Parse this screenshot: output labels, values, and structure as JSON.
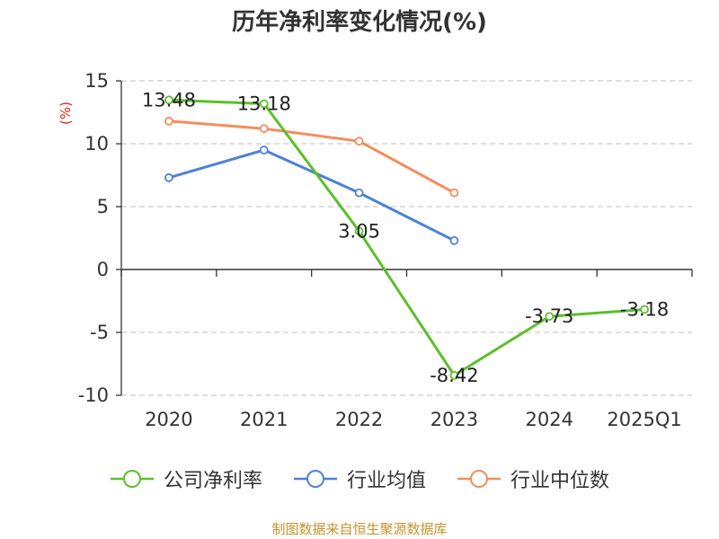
{
  "chart_data": {
    "type": "line",
    "title": "历年净利率变化情况(%)",
    "ylabel": "(%)",
    "xlabel": "",
    "categories": [
      "2020",
      "2021",
      "2022",
      "2023",
      "2024",
      "2025Q1"
    ],
    "ylim": [
      -10,
      15
    ],
    "yticks": [
      -10,
      -5,
      0,
      5,
      10,
      15
    ],
    "grid": true,
    "legend_position": "bottom",
    "series": [
      {
        "name": "公司净利率",
        "color": "#5cbf2a",
        "values": [
          13.48,
          13.18,
          3.05,
          -8.42,
          -3.73,
          -3.18
        ],
        "labels": [
          "13.48",
          "13.18",
          "3.05",
          "-8.42",
          "-3.73",
          "-3.18"
        ]
      },
      {
        "name": "行业均值",
        "color": "#4f81d9",
        "values": [
          7.3,
          9.5,
          6.1,
          2.3,
          null,
          null
        ]
      },
      {
        "name": "行业中位数",
        "color": "#f58d5a",
        "values": [
          11.8,
          11.2,
          10.2,
          6.1,
          null,
          null
        ]
      }
    ]
  },
  "source": "制图数据来自恒生聚源数据库"
}
